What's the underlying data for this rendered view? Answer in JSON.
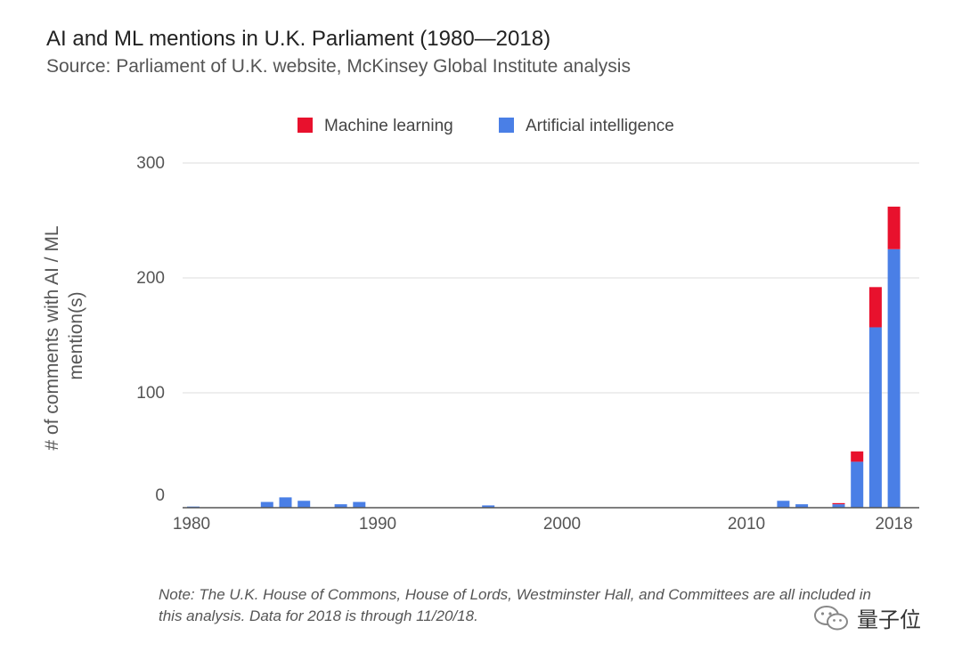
{
  "header": {
    "title": "AI and ML mentions in U.K. Parliament (1980—2018)",
    "subtitle": "Source: Parliament of U.K. website, McKinsey Global Institute analysis"
  },
  "note": "Note: The U.K. House of Commons, House of Lords, Westminster Hall, and Committees are all included in this analysis. Data for 2018 is through 11/20/18.",
  "watermark": {
    "text": "量子位",
    "icon": "wechat-icon"
  },
  "colors": {
    "ml": "#e8112d",
    "ai": "#4a7fe6",
    "grid": "#dddddd",
    "axis": "#555555"
  },
  "chart_data": {
    "type": "bar",
    "stacked": true,
    "title": "AI and ML mentions in U.K. Parliament (1980—2018)",
    "ylabel": "# of comments with AI / ML mention(s)",
    "xlabel": "",
    "ylim": [
      0,
      300
    ],
    "yticks": [
      0,
      100,
      200,
      300
    ],
    "xticks": [
      1980,
      1990,
      2000,
      2010,
      2018
    ],
    "legend_position": "top",
    "grid": true,
    "categories": [
      1980,
      1981,
      1982,
      1983,
      1984,
      1985,
      1986,
      1987,
      1988,
      1989,
      1990,
      1991,
      1992,
      1993,
      1994,
      1995,
      1996,
      1997,
      1998,
      1999,
      2000,
      2001,
      2002,
      2003,
      2004,
      2005,
      2006,
      2007,
      2008,
      2009,
      2010,
      2011,
      2012,
      2013,
      2014,
      2015,
      2016,
      2017,
      2018
    ],
    "series": [
      {
        "name": "Artificial intelligence",
        "color": "#4a7fe6",
        "values": [
          1,
          0,
          0,
          0,
          5,
          9,
          6,
          0,
          3,
          5,
          0,
          0,
          0,
          0,
          0,
          0,
          2,
          0,
          0,
          0,
          0,
          0,
          0,
          0,
          0,
          0,
          0,
          0,
          0,
          0,
          0,
          0,
          6,
          3,
          0,
          3,
          40,
          157,
          225
        ]
      },
      {
        "name": "Machine learning",
        "color": "#e8112d",
        "values": [
          0,
          0,
          0,
          0,
          0,
          0,
          0,
          0,
          0,
          0,
          0,
          0,
          0,
          0,
          0,
          0,
          0,
          0,
          0,
          0,
          0,
          0,
          0,
          0,
          0,
          0,
          0,
          0,
          0,
          0,
          0,
          0,
          0,
          0,
          0,
          1,
          9,
          35,
          37
        ]
      }
    ]
  }
}
